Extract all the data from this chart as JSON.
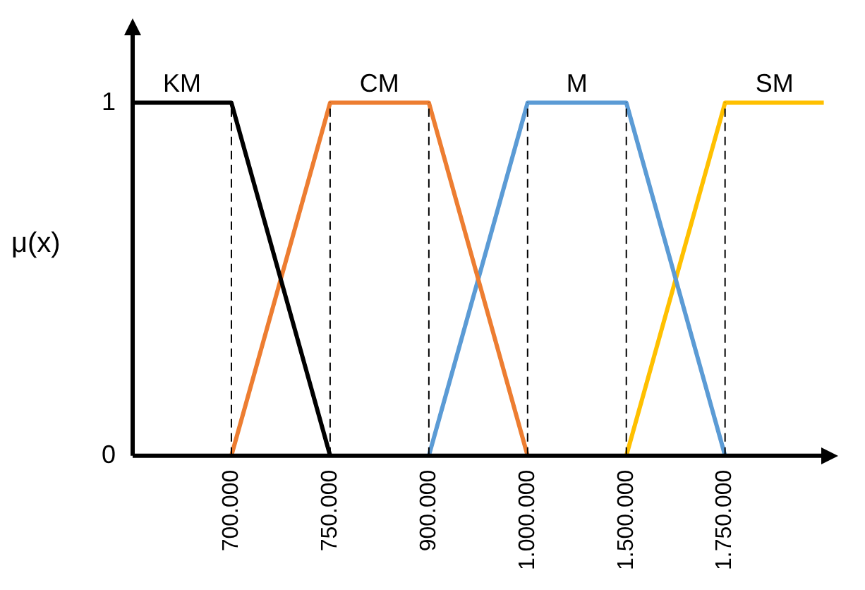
{
  "chart_data": {
    "type": "line",
    "ylabel": "μ(x)",
    "categories": [
      null,
      "700.000",
      "750.000",
      "900.000",
      "1.000.000",
      "1.500.000",
      "1.750.000",
      null
    ],
    "series": [
      {
        "name": "KM",
        "color": "#000000",
        "values": [
          1,
          1,
          0,
          null,
          null,
          null,
          null,
          null
        ]
      },
      {
        "name": "CM",
        "color": "#ed7d31",
        "values": [
          null,
          0,
          1,
          1,
          0,
          null,
          null,
          null
        ]
      },
      {
        "name": "M",
        "color": "#5b9bd5",
        "values": [
          null,
          null,
          null,
          0,
          1,
          1,
          0,
          null
        ]
      },
      {
        "name": "SM",
        "color": "#ffc000",
        "values": [
          null,
          null,
          null,
          null,
          null,
          0,
          1,
          1
        ]
      }
    ],
    "ylim": [
      0,
      1.2
    ],
    "yticks": [
      0,
      1
    ],
    "grid": false,
    "legend": false,
    "marker": "none",
    "line_style": "solid",
    "ref_lines": [
      {
        "axis": "x",
        "value": "700.000",
        "color": "#000000",
        "line_style": "dashed"
      },
      {
        "axis": "x",
        "value": "750.000",
        "color": "#000000",
        "line_style": "dashed"
      },
      {
        "axis": "x",
        "value": "900.000",
        "color": "#000000",
        "line_style": "dashed"
      },
      {
        "axis": "x",
        "value": "1.000.000",
        "color": "#000000",
        "line_style": "dashed"
      },
      {
        "axis": "x",
        "value": "1.500.000",
        "color": "#000000",
        "line_style": "dashed"
      },
      {
        "axis": "x",
        "value": "1.750.000",
        "color": "#000000",
        "line_style": "dashed"
      }
    ]
  }
}
